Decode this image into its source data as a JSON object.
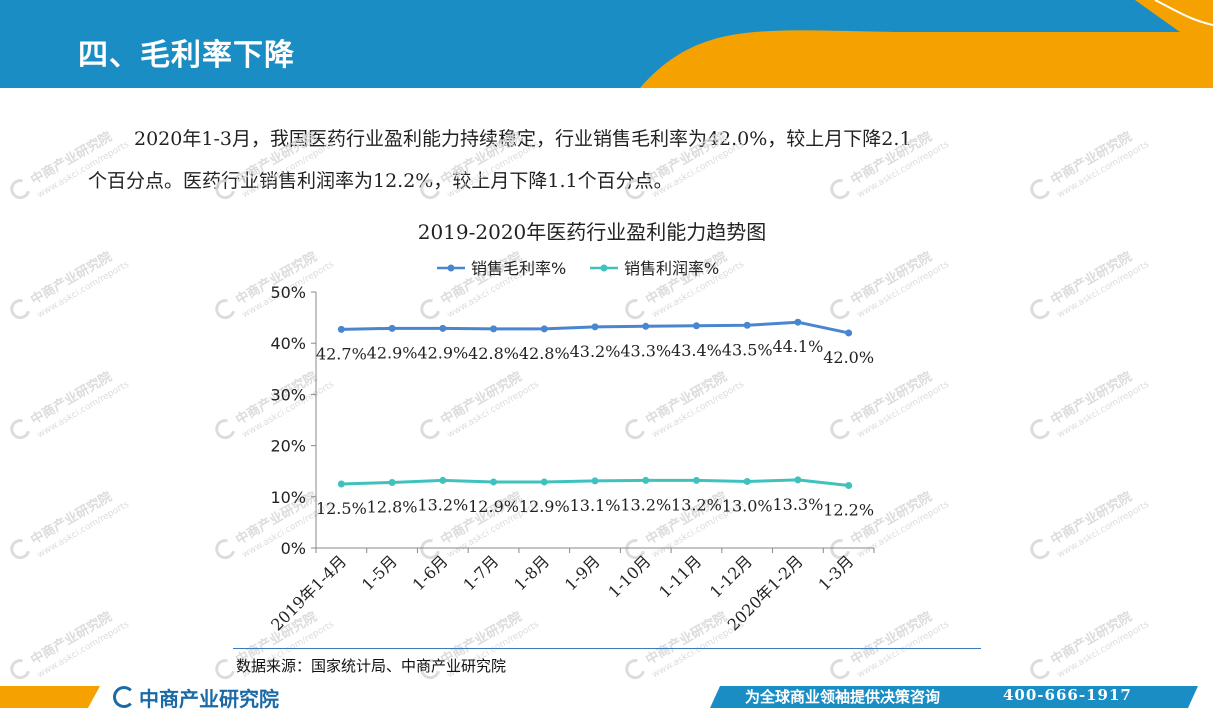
{
  "header": {
    "title": "四、毛利率下降"
  },
  "paragraph": {
    "line1": "2020年1-3月，我国医药行业盈利能力持续稳定，行业销售毛利率为42.0%，较上月下降2.1",
    "line2": "个百分点。医药行业销售利润率为12.2%，较上月下降1.1个百分点。"
  },
  "watermark": {
    "text": "中商产业研究院",
    "url": "www.askci.com/reports"
  },
  "chart_data": {
    "type": "line",
    "title": "2019-2020年医药行业盈利能力趋势图",
    "categories": [
      "2019年1-4月",
      "1-5月",
      "1-6月",
      "1-7月",
      "1-8月",
      "1-9月",
      "1-10月",
      "1-11月",
      "1-12月",
      "2020年1-2月",
      "1-3月"
    ],
    "series": [
      {
        "name": "销售毛利率%",
        "color": "#4a86d0",
        "values": [
          42.7,
          42.9,
          42.9,
          42.8,
          42.8,
          43.2,
          43.3,
          43.4,
          43.5,
          44.1,
          42.0
        ],
        "labels": [
          "42.7%",
          "42.9%",
          "42.9%",
          "42.8%",
          "42.8%",
          "43.2%",
          "43.3%",
          "43.4%",
          "43.5%",
          "44.1%",
          "42.0%"
        ]
      },
      {
        "name": "销售利润率%",
        "color": "#3fc2bd",
        "values": [
          12.5,
          12.8,
          13.2,
          12.9,
          12.9,
          13.1,
          13.2,
          13.2,
          13.0,
          13.3,
          12.2
        ],
        "labels": [
          "12.5%",
          "12.8%",
          "13.2%",
          "12.9%",
          "12.9%",
          "13.1%",
          "13.2%",
          "13.2%",
          "13.0%",
          "13.3%",
          "12.2%"
        ]
      }
    ],
    "yticks": [
      "0%",
      "10%",
      "20%",
      "30%",
      "40%",
      "50%"
    ],
    "ylim": [
      0,
      50
    ],
    "legend": "top",
    "grid": false
  },
  "source": "数据来源：国家统计局、中商产业研究院",
  "footer": {
    "logo": "中商产业研究院",
    "slogan": "为全球商业领袖提供决策咨询",
    "phone": "400-666-1917",
    "colors": {
      "blue": "#1a8ec4",
      "orange": "#f5a100"
    }
  }
}
